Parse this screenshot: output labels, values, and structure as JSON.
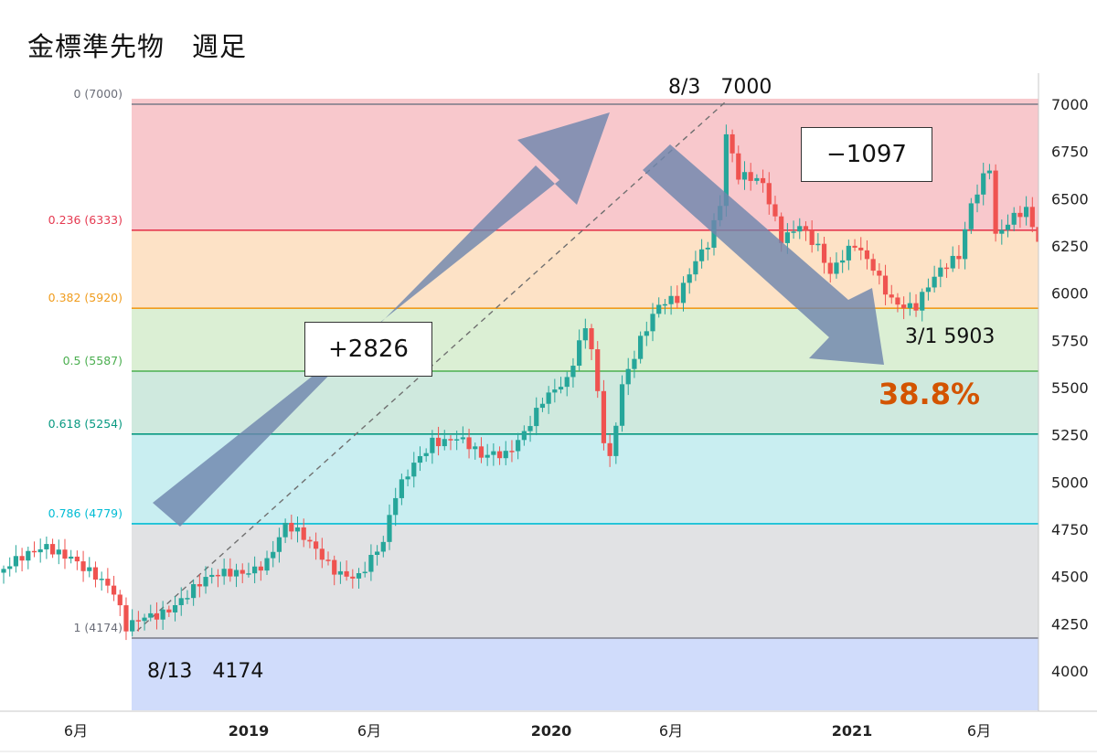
{
  "page": {
    "title": "金標準先物　週足"
  },
  "annotations": {
    "rise_label": "+2826",
    "fall_label": "−1097",
    "peak_label": "8/3　7000",
    "low_label": "8/13　4174",
    "trough_label": "3/1 5903",
    "retracement_pct": "38.8%"
  },
  "colors": {
    "up": "#26a69a",
    "down": "#ef5350",
    "arrow": "#6f86ad"
  },
  "chart_data": {
    "type": "candlestick",
    "title": "金標準先物　週足",
    "timeframe": "weekly",
    "ylim": [
      3800,
      7150
    ],
    "y_ticks": [
      4000,
      4250,
      4500,
      4750,
      5000,
      5250,
      5500,
      5750,
      6000,
      6250,
      6500,
      6750,
      7000
    ],
    "x_ticks": [
      "6月",
      "2019",
      "6月",
      "2020",
      "6月",
      "2021",
      "6月"
    ],
    "swing_low": {
      "date": "8/13",
      "value": 4174
    },
    "swing_high": {
      "date": "8/3",
      "value": 7000
    },
    "pullback_low": {
      "date": "3/1",
      "value": 5903
    },
    "rise": 2826,
    "fall": -1097,
    "retracement": "38.8%",
    "fib_levels": [
      {
        "label": "0 (7000)",
        "ratio": 0,
        "value": 7000,
        "line": "#787b86",
        "fill": "#f8c8cc"
      },
      {
        "label": "0.236 (6333)",
        "ratio": 0.236,
        "value": 6333,
        "line": "#e53950",
        "fill": "#fde2c6"
      },
      {
        "label": "0.382 (5920)",
        "ratio": 0.382,
        "value": 5920,
        "line": "#f09c1d",
        "fill": "#dbefd4"
      },
      {
        "label": "0.5 (5587)",
        "ratio": 0.5,
        "value": 5587,
        "line": "#4caf50",
        "fill": "#cfe9de"
      },
      {
        "label": "0.618 (5254)",
        "ratio": 0.618,
        "value": 5254,
        "line": "#089981",
        "fill": "#c9eef1"
      },
      {
        "label": "0.786 (4779)",
        "ratio": 0.786,
        "value": 4779,
        "line": "#00bcd4",
        "fill": "#e1e2e4"
      },
      {
        "label": "1 (4174)",
        "ratio": 1,
        "value": 4174,
        "line": "#787b86",
        "fill": "#d0dcfb"
      }
    ],
    "close_anchors": [
      [
        0,
        4540
      ],
      [
        4,
        4580
      ],
      [
        7,
        4650
      ],
      [
        11,
        4640
      ],
      [
        14,
        4540
      ],
      [
        18,
        4380
      ],
      [
        20,
        4200
      ],
      [
        23,
        4300
      ],
      [
        30,
        4400
      ],
      [
        37,
        4520
      ],
      [
        43,
        4600
      ],
      [
        46,
        4750
      ],
      [
        50,
        4650
      ],
      [
        54,
        4560
      ],
      [
        58,
        4520
      ],
      [
        62,
        4650
      ],
      [
        64,
        4900
      ],
      [
        67,
        5100
      ],
      [
        70,
        5250
      ],
      [
        74,
        5240
      ],
      [
        78,
        5100
      ],
      [
        82,
        5150
      ],
      [
        86,
        5350
      ],
      [
        88,
        5450
      ],
      [
        92,
        5500
      ],
      [
        95,
        5800
      ],
      [
        96,
        5700
      ],
      [
        98,
        5250
      ],
      [
        99,
        5150
      ],
      [
        101,
        5550
      ],
      [
        104,
        5750
      ],
      [
        107,
        5900
      ],
      [
        110,
        5950
      ],
      [
        113,
        6200
      ],
      [
        115,
        6300
      ],
      [
        117,
        6500
      ],
      [
        118,
        6850
      ],
      [
        120,
        6600
      ],
      [
        124,
        6550
      ],
      [
        127,
        6300
      ],
      [
        130,
        6400
      ],
      [
        133,
        6250
      ],
      [
        135,
        6080
      ],
      [
        139,
        6230
      ],
      [
        142,
        6150
      ],
      [
        145,
        6000
      ],
      [
        147,
        5950
      ],
      [
        149,
        5920
      ],
      [
        152,
        6050
      ],
      [
        156,
        6200
      ],
      [
        158,
        6500
      ],
      [
        160,
        6650
      ],
      [
        161,
        6700
      ],
      [
        162,
        6320
      ],
      [
        165,
        6380
      ],
      [
        167,
        6400
      ],
      [
        169,
        6250
      ]
    ]
  }
}
